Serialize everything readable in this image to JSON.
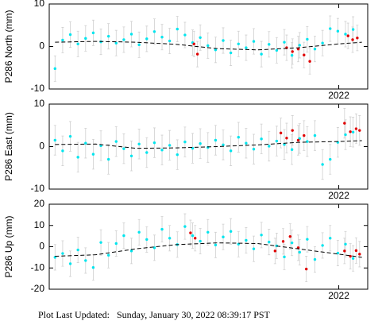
{
  "chart_data": [
    {
      "type": "scatter",
      "ylabel": "P286 North (mm)",
      "xlim": [
        2019.5,
        2022.25
      ],
      "xticks": [
        2022
      ],
      "ylim": [
        -10,
        10
      ],
      "yticks": [
        -10,
        0,
        10
      ],
      "series": [
        {
          "color": "#00e5ee",
          "error": 3,
          "x": [
            2019.55,
            2019.616,
            2019.682,
            2019.748,
            2019.814,
            2019.88,
            2019.946,
            2020.012,
            2020.078,
            2020.144,
            2020.21,
            2020.276,
            2020.342,
            2020.408,
            2020.474,
            2020.54,
            2020.606,
            2020.672,
            2020.738,
            2020.804,
            2020.87,
            2020.936,
            2021.002,
            2021.068,
            2021.134,
            2021.2,
            2021.266,
            2021.332,
            2021.398,
            2021.464,
            2021.53,
            2021.596,
            2021.662,
            2021.728,
            2021.794,
            2021.86,
            2021.926,
            2021.992,
            2022.058,
            2022.124
          ],
          "values": [
            -5.2,
            1.5,
            2.8,
            0.6,
            1.9,
            3.2,
            1.1,
            2.4,
            0.8,
            1.6,
            2.9,
            0.4,
            1.8,
            3.5,
            2.2,
            1.3,
            4.1,
            2.7,
            0.9,
            2.1,
            0.2,
            -0.8,
            1.4,
            -1.5,
            0.6,
            -0.3,
            1.2,
            -1.8,
            0.5,
            -0.9,
            1.0,
            -2.1,
            0.3,
            1.7,
            -0.6,
            0.8,
            4.2,
            3.6,
            2.9,
            4.0
          ]
        },
        {
          "color": "#e00000",
          "error": 3,
          "x": [
            2020.75,
            2020.78,
            2021.55,
            2021.6,
            2021.65,
            2021.7,
            2021.75,
            2022.08,
            2022.12,
            2022.16
          ],
          "values": [
            0.6,
            -1.8,
            -0.3,
            -1.2,
            -0.6,
            -2.0,
            -3.5,
            2.5,
            1.6,
            2.0
          ]
        }
      ],
      "trend": {
        "color": "#000000",
        "dashed": true,
        "x": [
          2019.55,
          2019.9,
          2020.25,
          2020.6,
          2020.95,
          2021.3,
          2021.65,
          2022.0,
          2022.2
        ],
        "values": [
          1.0,
          1.2,
          1.0,
          0.5,
          -0.5,
          -0.8,
          -0.3,
          0.6,
          1.0
        ]
      }
    },
    {
      "type": "scatter",
      "ylabel": "P286 East (mm)",
      "xlim": [
        2019.5,
        2022.25
      ],
      "xticks": [
        2022
      ],
      "ylim": [
        -10,
        10
      ],
      "yticks": [
        -10,
        0,
        10
      ],
      "series": [
        {
          "color": "#00e5ee",
          "error": 3.5,
          "x": [
            2019.55,
            2019.616,
            2019.682,
            2019.748,
            2019.814,
            2019.88,
            2019.946,
            2020.012,
            2020.078,
            2020.144,
            2020.21,
            2020.276,
            2020.342,
            2020.408,
            2020.474,
            2020.54,
            2020.606,
            2020.672,
            2020.738,
            2020.804,
            2020.87,
            2020.936,
            2021.002,
            2021.068,
            2021.134,
            2021.2,
            2021.266,
            2021.332,
            2021.398,
            2021.464,
            2021.53,
            2021.596,
            2021.662,
            2021.728,
            2021.794,
            2021.86,
            2021.926,
            2021.992,
            2022.058,
            2022.124
          ],
          "values": [
            1.5,
            -1.0,
            2.4,
            -2.5,
            0.8,
            -1.8,
            0.2,
            -3.0,
            1.2,
            -0.5,
            -2.2,
            0.6,
            -1.4,
            0.9,
            -0.8,
            0.3,
            -1.9,
            1.1,
            -0.4,
            0.7,
            -0.2,
            1.5,
            0.4,
            -1.0,
            2.2,
            0.8,
            -0.6,
            1.8,
            0.1,
            1.3,
            0.5,
            -0.7,
            1.9,
            1.2,
            2.6,
            -4.2,
            -3.0,
            1.0,
            2.8,
            3.4
          ]
        },
        {
          "color": "#e00000",
          "error": 3.5,
          "x": [
            2021.5,
            2021.55,
            2021.6,
            2021.65,
            2021.7,
            2022.05,
            2022.1,
            2022.15,
            2022.18
          ],
          "values": [
            3.2,
            2.0,
            3.8,
            1.5,
            2.6,
            5.5,
            3.5,
            4.2,
            3.8
          ]
        }
      ],
      "trend": {
        "color": "#000000",
        "dashed": true,
        "x": [
          2019.55,
          2019.9,
          2020.25,
          2020.6,
          2020.95,
          2021.3,
          2021.65,
          2022.0,
          2022.2
        ],
        "values": [
          0.5,
          0.6,
          -0.4,
          -0.3,
          0.0,
          0.4,
          1.0,
          1.2,
          1.4
        ]
      }
    },
    {
      "type": "scatter",
      "ylabel": "P286 Up (mm)",
      "xlim": [
        2019.5,
        2022.25
      ],
      "xticks": [
        2022
      ],
      "ylim": [
        -20,
        20
      ],
      "yticks": [
        -20,
        -10,
        0,
        10,
        20
      ],
      "series": [
        {
          "color": "#00e5ee",
          "error": 6,
          "x": [
            2019.55,
            2019.616,
            2019.682,
            2019.748,
            2019.814,
            2019.88,
            2019.946,
            2020.012,
            2020.078,
            2020.144,
            2020.21,
            2020.276,
            2020.342,
            2020.408,
            2020.474,
            2020.54,
            2020.606,
            2020.672,
            2020.738,
            2020.804,
            2020.87,
            2020.936,
            2021.002,
            2021.068,
            2021.134,
            2021.2,
            2021.266,
            2021.332,
            2021.398,
            2021.464,
            2021.53,
            2021.596,
            2021.662,
            2021.728,
            2021.794,
            2021.86,
            2021.926,
            2021.992,
            2022.058,
            2022.124
          ],
          "values": [
            -5.0,
            -3.2,
            -8.0,
            -1.5,
            -6.5,
            -9.8,
            2.0,
            -4.0,
            1.5,
            5.2,
            -2.0,
            6.8,
            3.4,
            -0.5,
            8.2,
            4.0,
            1.0,
            9.5,
            5.2,
            2.6,
            6.8,
            0.8,
            4.6,
            7.2,
            1.2,
            3.0,
            -1.0,
            5.5,
            2.2,
            0.4,
            -4.8,
            1.8,
            -2.6,
            3.5,
            -6.0,
            0.6,
            4.0,
            -3.0,
            1.2,
            -5.5
          ]
        },
        {
          "color": "#e00000",
          "error": 6,
          "x": [
            2020.72,
            2020.76,
            2021.45,
            2021.52,
            2021.58,
            2021.65,
            2021.72,
            2022.05,
            2022.1,
            2022.15,
            2022.18
          ],
          "values": [
            6.5,
            4.0,
            -2.0,
            2.5,
            4.8,
            -0.5,
            -10.5,
            -2.0,
            -4.5,
            -1.8,
            -3.5
          ]
        }
      ],
      "trend": {
        "color": "#000000",
        "dashed": true,
        "x": [
          2019.55,
          2019.9,
          2020.25,
          2020.6,
          2020.95,
          2021.3,
          2021.65,
          2022.0,
          2022.2
        ],
        "values": [
          -4.5,
          -3.8,
          -1.0,
          1.0,
          1.8,
          1.5,
          -1.0,
          -3.5,
          -5.0
        ]
      }
    }
  ],
  "footer": "Plot Last Updated:   Sunday, January 30, 2022 08:39:17 PST"
}
